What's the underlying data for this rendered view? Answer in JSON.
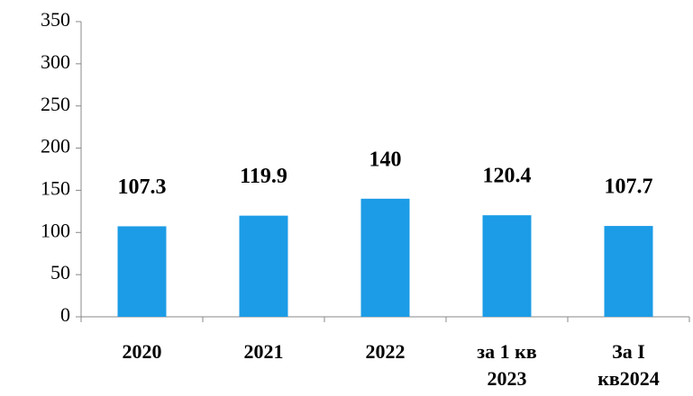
{
  "chart_data": {
    "type": "bar",
    "categories": [
      "2020",
      "2021",
      "2022",
      "за 1 кв 2023",
      "За I кв2024"
    ],
    "values": [
      107.3,
      119.9,
      140,
      120.4,
      107.7
    ],
    "color": "#1c9ce6",
    "ylim": [
      0,
      350
    ],
    "yticks": [
      0,
      50,
      100,
      150,
      200,
      250,
      300,
      350
    ],
    "grid": false
  }
}
